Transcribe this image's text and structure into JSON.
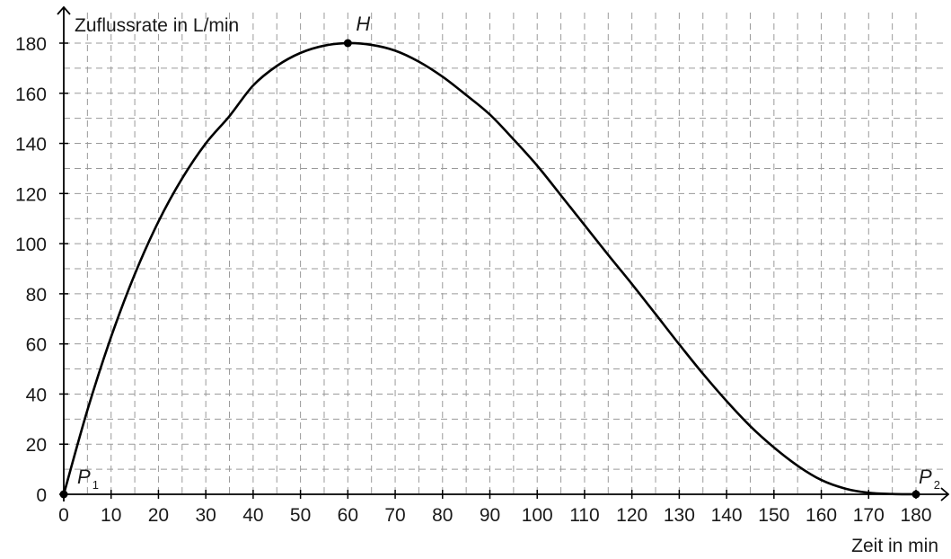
{
  "chart_data": {
    "type": "line",
    "xlabel": "Zeit in min",
    "ylabel": "Zuflussrate in L/min",
    "xlim": [
      0,
      180
    ],
    "ylim": [
      0,
      180
    ],
    "x_ticks": [
      "0",
      "10",
      "20",
      "30",
      "40",
      "50",
      "60",
      "70",
      "80",
      "90",
      "100",
      "110",
      "120",
      "130",
      "140",
      "150",
      "160",
      "170",
      "180"
    ],
    "y_ticks": [
      "0",
      "20",
      "40",
      "60",
      "80",
      "100",
      "120",
      "140",
      "160",
      "180"
    ],
    "grid": true,
    "grid_style": "dashed",
    "series": [
      {
        "x": [
          0,
          5,
          10,
          15,
          20,
          25,
          30,
          35,
          40,
          45,
          50,
          55,
          60,
          65,
          70,
          75,
          80,
          85,
          90,
          95,
          100,
          105,
          110,
          115,
          120,
          125,
          130,
          135,
          140,
          145,
          150,
          155,
          160,
          165,
          170,
          175,
          180
        ],
        "y": [
          0,
          33.6,
          62.8,
          87.8,
          108.8,
          126.0,
          140.0,
          150.9,
          163.1,
          170.9,
          176.1,
          179.0,
          180.0,
          179.3,
          177.0,
          172.6,
          166.6,
          159.3,
          151.5,
          141.6,
          131.1,
          119.3,
          107.4,
          95.5,
          83.9,
          71.9,
          59.8,
          48.1,
          37.2,
          27.2,
          18.7,
          11.4,
          5.7,
          2.3,
          0.6,
          0.1,
          0
        ]
      }
    ],
    "points": [
      {
        "label": "P",
        "subscript": "1",
        "x": 0,
        "y": 0
      },
      {
        "label": "H",
        "subscript": "",
        "x": 60,
        "y": 180
      },
      {
        "label": "P",
        "subscript": "2",
        "x": 180,
        "y": 0
      }
    ]
  }
}
